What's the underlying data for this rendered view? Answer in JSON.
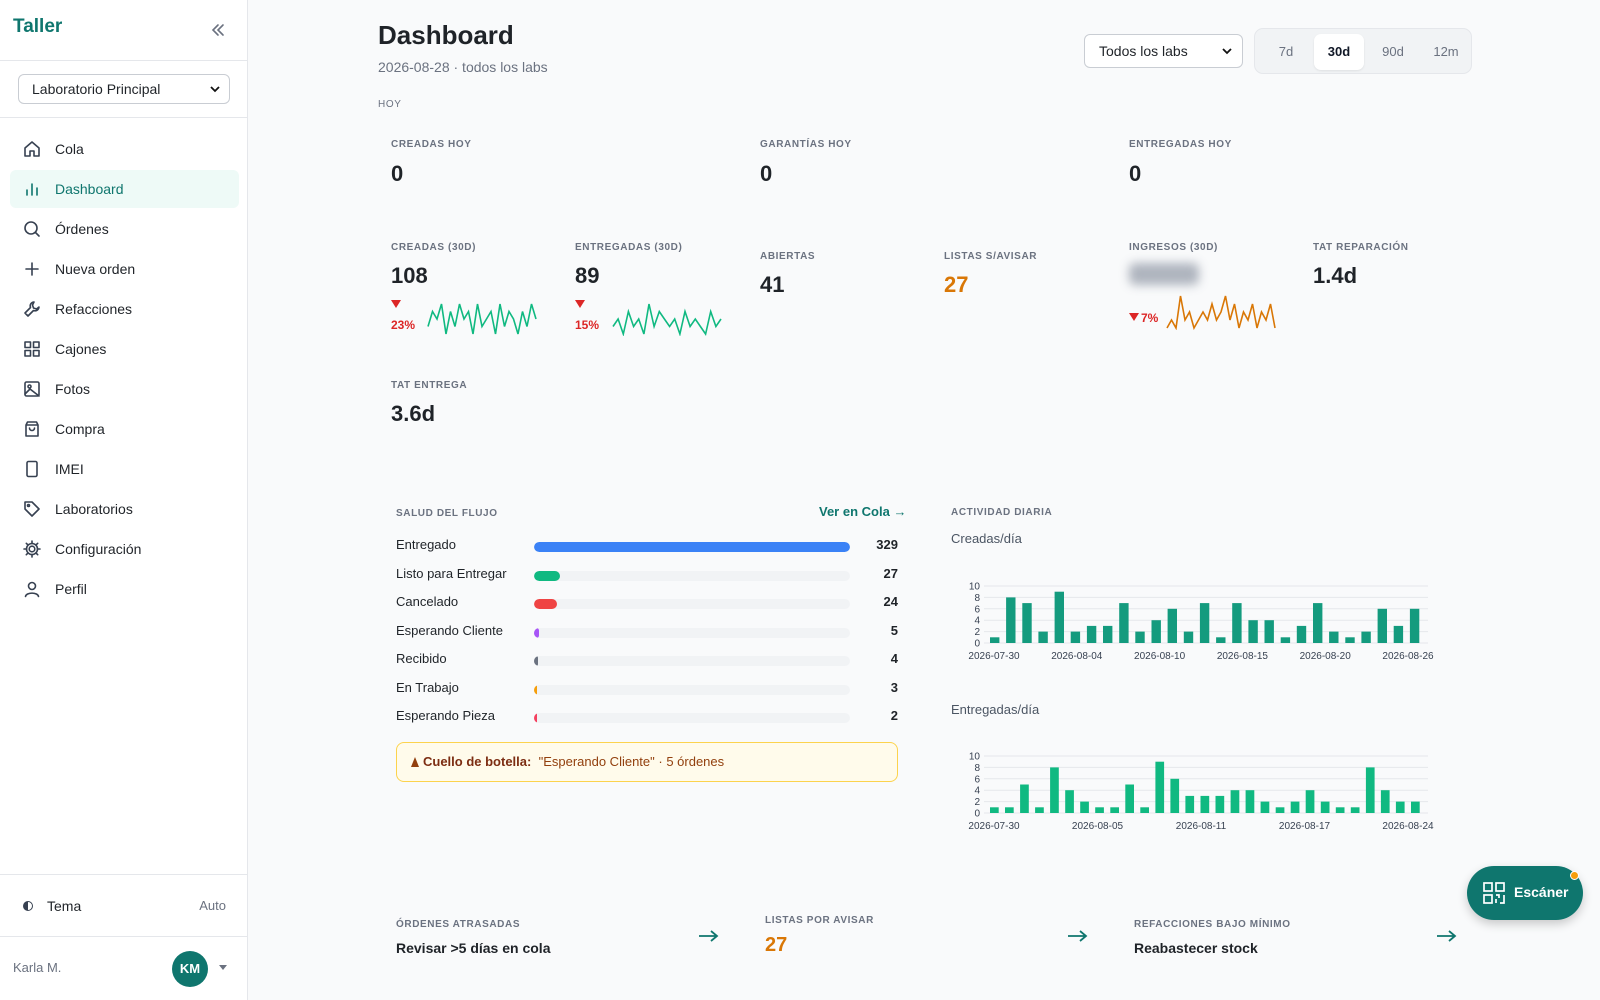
{
  "sidebar": {
    "brand": "Taller",
    "lab_select": "Laboratorio Principal",
    "items": [
      {
        "label": "Cola",
        "icon": "home-icon"
      },
      {
        "label": "Dashboard",
        "icon": "bar-chart-icon",
        "active": true
      },
      {
        "label": "Órdenes",
        "icon": "search-icon"
      },
      {
        "label": "Nueva orden",
        "icon": "plus-icon"
      },
      {
        "label": "Refacciones",
        "icon": "wrench-icon"
      },
      {
        "label": "Cajones",
        "icon": "grid-icon"
      },
      {
        "label": "Fotos",
        "icon": "image-icon"
      },
      {
        "label": "Compra",
        "icon": "shopping-bag-icon"
      },
      {
        "label": "IMEI",
        "icon": "phone-icon"
      },
      {
        "label": "Laboratorios",
        "icon": "tag-icon"
      },
      {
        "label": "Configuración",
        "icon": "gear-icon"
      },
      {
        "label": "Perfil",
        "icon": "user-icon"
      }
    ],
    "theme_label": "Tema",
    "theme_value": "Auto",
    "user_name": "Karla M.",
    "user_initials": "KM"
  },
  "header": {
    "title": "Dashboard",
    "subtitle": "2026-08-28 · todos los labs",
    "labs_filter": "Todos los labs",
    "ranges": [
      "7d",
      "30d",
      "90d",
      "12m"
    ],
    "selected_range": "30d"
  },
  "today": {
    "section_label": "HOY",
    "created_label": "CREADAS HOY",
    "created_value": "0",
    "warranty_label": "GARANTÍAS HOY",
    "warranty_value": "0",
    "delivered_label": "ENTREGADAS HOY",
    "delivered_value": "0"
  },
  "period": {
    "created_label": "CREADAS (30D)",
    "created_value": "108",
    "created_delta": "23%",
    "delivered_label": "ENTREGADAS (30D)",
    "delivered_value": "89",
    "delivered_delta": "15%",
    "open_label": "ABIERTAS",
    "open_value": "41",
    "ready_label": "LISTAS S/AVISAR",
    "ready_value": "27",
    "income_label": "INGRESOS (30D)",
    "income_delta": "7%",
    "tat_repair_label": "TAT REPARACIÓN",
    "tat_repair_value": "1.4d",
    "tat_delivery_label": "TAT ENTREGA",
    "tat_delivery_value": "3.6d"
  },
  "sparklines": {
    "created": [
      3,
      5,
      4,
      6,
      2,
      5,
      3,
      6,
      4,
      5,
      2,
      6,
      3,
      4,
      5,
      2,
      6,
      3,
      5,
      4,
      2,
      5,
      3,
      6,
      4
    ],
    "delivered": [
      3,
      4,
      2,
      5,
      3,
      4,
      2,
      6,
      3,
      5,
      4,
      3,
      4,
      2,
      5,
      3,
      4,
      3,
      2,
      5,
      3,
      4
    ],
    "income": [
      2,
      3,
      2,
      6,
      3,
      4,
      2,
      3,
      4,
      3,
      5,
      3,
      4,
      6,
      3,
      5,
      2,
      4,
      3,
      5,
      2,
      4,
      3,
      5,
      2
    ]
  },
  "colors": {
    "accent": "#0f766e",
    "warning": "#d97706",
    "negative": "#dc2626",
    "sparkline_income": "#d97706"
  },
  "flow": {
    "title": "SALUD DEL FLUJO",
    "link": "Ver en Cola",
    "rows": [
      {
        "label": "Entregado",
        "value": 329,
        "color": "#3b82f6"
      },
      {
        "label": "Listo para Entregar",
        "value": 27,
        "color": "#10b981"
      },
      {
        "label": "Cancelado",
        "value": 24,
        "color": "#ef4444"
      },
      {
        "label": "Esperando Cliente",
        "value": 5,
        "color": "#a855f7"
      },
      {
        "label": "Recibido",
        "value": 4,
        "color": "#6b7280"
      },
      {
        "label": "En Trabajo",
        "value": 3,
        "color": "#f59e0b"
      },
      {
        "label": "Esperando Pieza",
        "value": 2,
        "color": "#f43f5e"
      }
    ],
    "bottleneck_label": "Cuello de botella:",
    "bottleneck_text": "\"Esperando Cliente\" · 5 órdenes"
  },
  "activity": {
    "title": "ACTIVIDAD DIARIA",
    "created_sub": "Creadas/día",
    "delivered_sub": "Entregadas/día"
  },
  "chart_data": [
    {
      "type": "bar",
      "title": "Creadas/día",
      "ylim": [
        0,
        10
      ],
      "yticks": [
        0,
        2,
        4,
        6,
        8,
        10
      ],
      "x_tick_labels": [
        "2026-07-30",
        "2026-08-04",
        "2026-08-10",
        "2026-08-15",
        "2026-08-20",
        "2026-08-26"
      ],
      "values": [
        1,
        8,
        7,
        2,
        9,
        2,
        3,
        3,
        7,
        2,
        4,
        6,
        2,
        7,
        1,
        7,
        4,
        4,
        1,
        3,
        7,
        2,
        1,
        2,
        6,
        3,
        6
      ],
      "color": "#149b7e"
    },
    {
      "type": "bar",
      "title": "Entregadas/día",
      "ylim": [
        0,
        10
      ],
      "yticks": [
        0,
        2,
        4,
        6,
        8,
        10
      ],
      "x_tick_labels": [
        "2026-07-30",
        "2026-08-05",
        "2026-08-11",
        "2026-08-17",
        "2026-08-24"
      ],
      "values": [
        1,
        1,
        5,
        1,
        8,
        4,
        2,
        1,
        1,
        5,
        1,
        9,
        6,
        3,
        3,
        3,
        4,
        4,
        2,
        1,
        2,
        4,
        2,
        1,
        1,
        8,
        4,
        2,
        2
      ],
      "color": "#10b981"
    }
  ],
  "footer": {
    "late_label": "ÓRDENES ATRASADAS",
    "late_value": "Revisar >5 días en cola",
    "notify_label": "LISTAS POR AVISAR",
    "notify_value": "27",
    "parts_label": "REFACCIONES BAJO MÍNIMO",
    "parts_value": "Reabastecer stock"
  },
  "fab": {
    "label": "Escáner"
  }
}
